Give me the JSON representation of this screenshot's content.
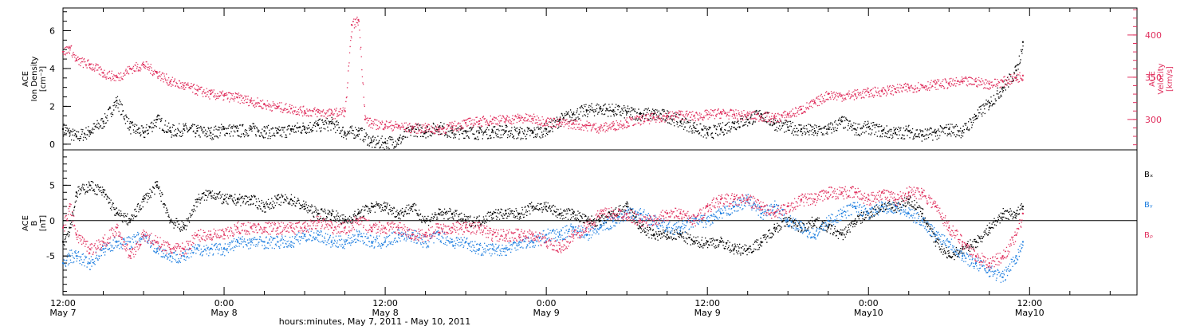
{
  "chart_data": [
    {
      "type": "scatter",
      "title": "",
      "left_axis": {
        "label_lines": [
          "ACE",
          "Ion Density",
          "[cm⁻³]"
        ],
        "range": [
          -0.3,
          7.2
        ],
        "ticks": [
          0,
          2,
          4,
          6
        ],
        "color": "#000000"
      },
      "right_axis": {
        "label_lines": [
          "ACE",
          "Velocity",
          "[km/s]"
        ],
        "range": [
          264,
          432
        ],
        "ticks": [
          300,
          350,
          400
        ],
        "color": "#e0305e"
      },
      "series": [
        {
          "name": "Ion Density",
          "color": "#000000",
          "axis": "left",
          "x": [
            0,
            0.5,
            1,
            2,
            3,
            4,
            5,
            6,
            7,
            8,
            9,
            10,
            11,
            12,
            13,
            14,
            15,
            16,
            17,
            18,
            19,
            20,
            21,
            22,
            23,
            24,
            25,
            26,
            27,
            28,
            29,
            30,
            31,
            32,
            33,
            34,
            35,
            36,
            37,
            38,
            39,
            40,
            41,
            42,
            43,
            44,
            45,
            46,
            47,
            48,
            49,
            50,
            51,
            52,
            53,
            54,
            55,
            56,
            57,
            58,
            59,
            60,
            61,
            62,
            63,
            64,
            65,
            66,
            67,
            68,
            69,
            70,
            71,
            71.5
          ],
          "y": [
            0.8,
            0.6,
            0.4,
            0.7,
            1.2,
            2.3,
            0.9,
            0.6,
            1.3,
            0.7,
            0.8,
            0.7,
            0.6,
            0.8,
            0.7,
            0.8,
            0.7,
            0.6,
            0.8,
            0.9,
            1.0,
            1.1,
            0.6,
            0.7,
            0.1,
            0.1,
            0.2,
            0.8,
            0.7,
            0.9,
            0.6,
            0.7,
            0.6,
            0.7,
            0.7,
            0.6,
            0.6,
            0.8,
            1.3,
            1.6,
            1.8,
            1.9,
            1.8,
            1.7,
            1.6,
            1.6,
            1.5,
            1.2,
            0.9,
            0.6,
            0.8,
            1.1,
            1.3,
            1.6,
            1.1,
            0.9,
            0.8,
            0.7,
            0.8,
            1.2,
            0.8,
            0.9,
            0.7,
            0.6,
            0.7,
            0.5,
            0.6,
            0.8,
            0.7,
            1.5,
            2.2,
            3.0,
            3.9,
            5.4
          ]
        },
        {
          "name": "Velocity",
          "color": "#e0305e",
          "axis": "right",
          "x": [
            0,
            0.5,
            1,
            2,
            3,
            4,
            5,
            6,
            7,
            8,
            9,
            10,
            11,
            12,
            13,
            14,
            15,
            16,
            17,
            18,
            19,
            20,
            21,
            21.5,
            22,
            22.5,
            23,
            24,
            25,
            26,
            27,
            28,
            29,
            30,
            31,
            32,
            33,
            34,
            35,
            36,
            37,
            38,
            39,
            40,
            41,
            42,
            43,
            44,
            45,
            46,
            47,
            48,
            49,
            50,
            51,
            52,
            53,
            54,
            55,
            56,
            57,
            58,
            59,
            60,
            61,
            62,
            63,
            64,
            65,
            66,
            67,
            68,
            69,
            70,
            71,
            71.5
          ],
          "y": [
            380,
            385,
            370,
            365,
            355,
            350,
            360,
            365,
            355,
            345,
            340,
            335,
            330,
            328,
            326,
            322,
            318,
            315,
            313,
            310,
            309,
            307,
            310,
            412,
            418,
            300,
            295,
            294,
            292,
            290,
            290,
            288,
            292,
            296,
            298,
            300,
            300,
            302,
            301,
            298,
            296,
            295,
            293,
            290,
            293,
            297,
            300,
            302,
            304,
            306,
            304,
            306,
            308,
            306,
            305,
            304,
            302,
            306,
            312,
            320,
            330,
            328,
            330,
            332,
            334,
            336,
            338,
            340,
            342,
            343,
            345,
            345,
            342,
            345,
            350,
            352
          ]
        }
      ]
    },
    {
      "type": "scatter",
      "title": "",
      "left_axis": {
        "label_lines": [
          "ACE",
          "B",
          "[nT]"
        ],
        "range": [
          -10.5,
          10
        ],
        "ticks": [
          -5,
          0,
          5
        ],
        "color": "#000000"
      },
      "zero_line": true,
      "series": [
        {
          "name": "Bx",
          "label": "Bₓ",
          "color": "#000000",
          "x": [
            0,
            0.5,
            1,
            2,
            3,
            4,
            5,
            6,
            7,
            8,
            9,
            10,
            11,
            12,
            13,
            14,
            15,
            16,
            17,
            18,
            19,
            20,
            21,
            22,
            23,
            24,
            25,
            26,
            27,
            28,
            29,
            30,
            31,
            32,
            33,
            34,
            35,
            36,
            37,
            38,
            39,
            40,
            41,
            42,
            43,
            44,
            45,
            46,
            47,
            48,
            49,
            50,
            51,
            52,
            53,
            54,
            55,
            56,
            57,
            58,
            59,
            60,
            61,
            62,
            63,
            64,
            65,
            66,
            67,
            68,
            69,
            70,
            71,
            71.5
          ],
          "y": [
            -3,
            -1,
            4,
            5,
            4,
            1,
            0,
            3,
            5,
            0,
            -1,
            3,
            4,
            3,
            3,
            3,
            2,
            3,
            3,
            2,
            1,
            1,
            0,
            1,
            2,
            2,
            1,
            2,
            0,
            1,
            1,
            0,
            0,
            1,
            1,
            1,
            2,
            2,
            1,
            1,
            0,
            0,
            1,
            2,
            -1,
            -2,
            -2,
            -2,
            -3,
            -3,
            -3,
            -4,
            -4,
            -3,
            -1,
            0,
            -1,
            0,
            -1,
            -2,
            0,
            1,
            2,
            2,
            3,
            1,
            -3,
            -5,
            -4,
            -3,
            -1,
            1,
            1,
            2
          ]
        },
        {
          "name": "By",
          "label": "Bᵧ",
          "color": "#1f7fe0",
          "x": [
            0,
            0.5,
            1,
            2,
            3,
            4,
            5,
            6,
            7,
            8,
            9,
            10,
            11,
            12,
            13,
            14,
            15,
            16,
            17,
            18,
            19,
            20,
            21,
            22,
            23,
            24,
            25,
            26,
            27,
            28,
            29,
            30,
            31,
            32,
            33,
            34,
            35,
            36,
            37,
            38,
            39,
            40,
            41,
            42,
            43,
            44,
            45,
            46,
            47,
            48,
            49,
            50,
            51,
            52,
            53,
            54,
            55,
            56,
            57,
            58,
            59,
            60,
            61,
            62,
            63,
            64,
            65,
            66,
            67,
            68,
            69,
            70,
            71,
            71.5
          ],
          "y": [
            -6,
            -5,
            -5,
            -6,
            -4,
            -3,
            -3,
            -2,
            -4,
            -5,
            -5,
            -4,
            -4,
            -4,
            -3,
            -3,
            -3,
            -3,
            -3,
            -2,
            -2,
            -3,
            -3,
            -2,
            -3,
            -3,
            -2,
            -2,
            -3,
            -2,
            -3,
            -3,
            -4,
            -4,
            -4,
            -3,
            -3,
            -2,
            -2,
            -1,
            -2,
            -1,
            0,
            1,
            1,
            0,
            -1,
            -1,
            0,
            0,
            1,
            2,
            3,
            1,
            2,
            0,
            -1,
            -2,
            0,
            1,
            2,
            1,
            2,
            2,
            1,
            0,
            -2,
            -3,
            -5,
            -6,
            -7,
            -8,
            -5,
            -3
          ]
        },
        {
          "name": "Bz",
          "label": "Bᵨ",
          "color": "#e0305e",
          "x": [
            0,
            0.5,
            1,
            2,
            3,
            4,
            5,
            6,
            7,
            8,
            9,
            10,
            11,
            12,
            13,
            14,
            15,
            16,
            17,
            18,
            19,
            20,
            21,
            22,
            23,
            24,
            25,
            26,
            27,
            28,
            29,
            30,
            31,
            32,
            33,
            34,
            35,
            36,
            37,
            38,
            39,
            40,
            41,
            42,
            43,
            44,
            45,
            46,
            47,
            48,
            49,
            50,
            51,
            52,
            53,
            54,
            55,
            56,
            57,
            58,
            59,
            60,
            61,
            62,
            63,
            64,
            65,
            66,
            67,
            68,
            69,
            70,
            71,
            71.5
          ],
          "y": [
            -1,
            2,
            -2,
            -4,
            -3,
            -1,
            -5,
            -2,
            -3,
            -4,
            -4,
            -2,
            -2,
            -2,
            -1,
            -1,
            -1,
            -1,
            -1,
            -1,
            0,
            -1,
            -1,
            0,
            -1,
            -1,
            -1,
            -2,
            -2,
            -1,
            -1,
            -1,
            -1,
            -2,
            -2,
            -2,
            -2,
            -3,
            -4,
            -2,
            -1,
            1,
            1,
            1,
            0,
            0,
            1,
            1,
            0,
            2,
            3,
            3,
            3,
            2,
            1,
            2,
            3,
            3,
            4,
            4,
            4,
            3,
            4,
            3,
            4,
            4,
            2,
            -1,
            -3,
            -5,
            -6,
            -5,
            -2,
            1
          ]
        }
      ]
    }
  ],
  "x_axis": {
    "range": [
      0,
      80
    ],
    "major_ticks": [
      0,
      12,
      24,
      36,
      48,
      60,
      72
    ],
    "tick_labels": [
      {
        "time": "12:00",
        "date": "May 7"
      },
      {
        "time": "0:00",
        "date": "May 8"
      },
      {
        "time": "12:00",
        "date": "May 8"
      },
      {
        "time": "0:00",
        "date": "May 9"
      },
      {
        "time": "12:00",
        "date": "May 9"
      },
      {
        "time": "0:00",
        "date": "May10"
      },
      {
        "time": "12:00",
        "date": "May10"
      }
    ],
    "xlabel": "hours:minutes, May  7, 2011 - May 10, 2011"
  },
  "colors": {
    "axes": "#000000",
    "density": "#000000",
    "velocity": "#e0305e",
    "by": "#1f7fe0",
    "bz": "#e0305e"
  }
}
